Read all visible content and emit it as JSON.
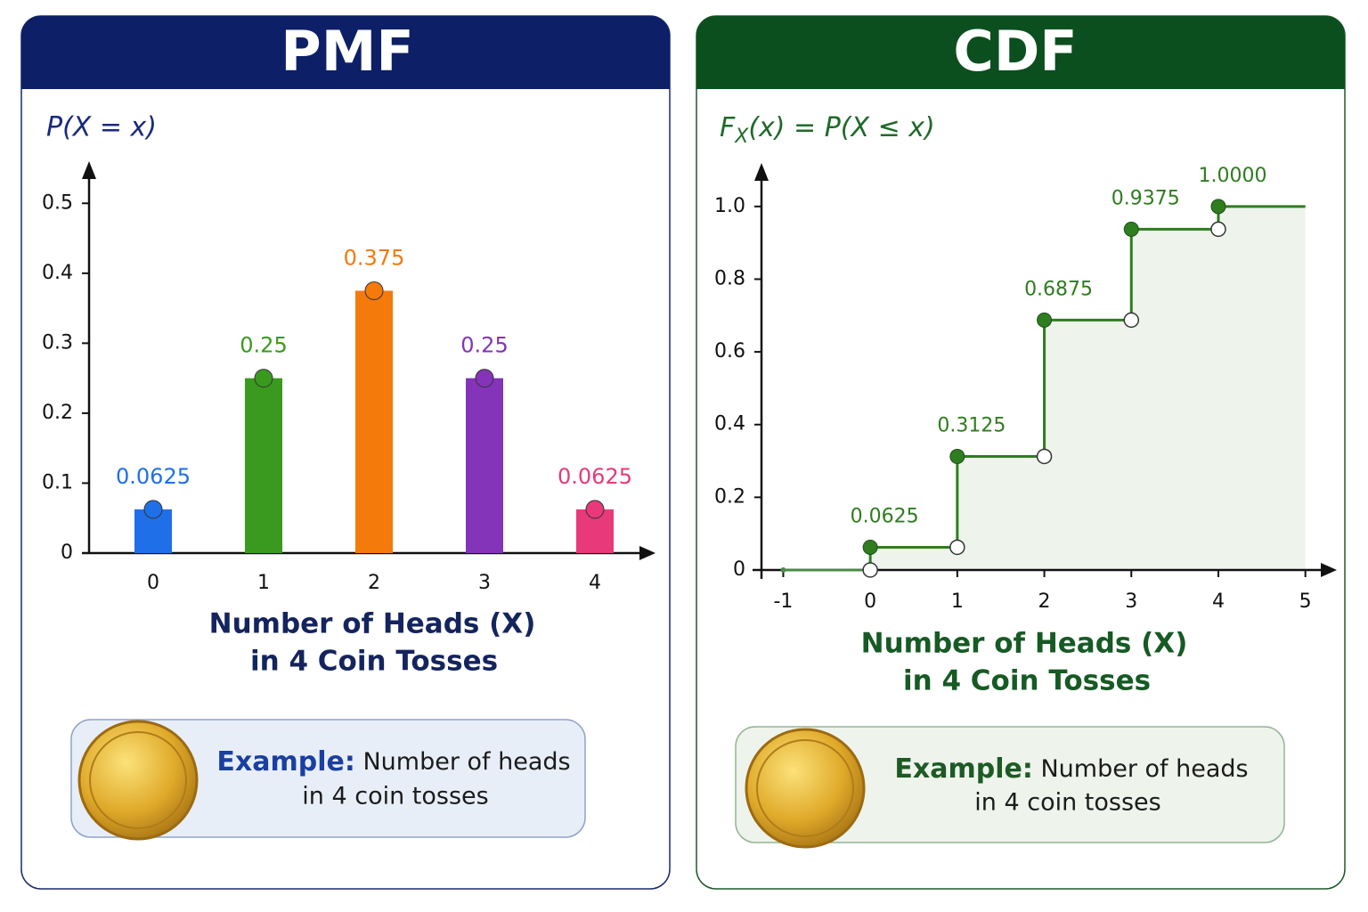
{
  "chart_data": [
    {
      "type": "bar",
      "title": "PMF",
      "y_label": "P(X = x)",
      "x_label": [
        "Number of Heads (X)",
        "in 4 Coin Tosses"
      ],
      "categories": [
        "0",
        "1",
        "2",
        "3",
        "4"
      ],
      "values": [
        0.0625,
        0.25,
        0.375,
        0.25,
        0.0625
      ],
      "colors": [
        "#1f6fe8",
        "#3a9a1f",
        "#f47a0c",
        "#8434b8",
        "#e8397a"
      ],
      "ylim": [
        0,
        0.55
      ],
      "yticks": [
        0,
        0.1,
        0.2,
        0.3,
        0.4,
        0.5
      ],
      "example": {
        "label": "Example:",
        "lines": [
          "Number of heads",
          "in 4 coin tosses"
        ]
      }
    },
    {
      "type": "step",
      "title": "CDF",
      "y_label": [
        "F",
        "X",
        "(x) = P(X ≤ x)"
      ],
      "x_label": [
        "Number of Heads (X)",
        "in 4 Coin Tosses"
      ],
      "x": [
        0,
        1,
        2,
        3,
        4
      ],
      "values": [
        0.0625,
        0.3125,
        0.6875,
        0.9375,
        1
      ],
      "value_labels": [
        "0.0625",
        "0.3125",
        "0.6875",
        "0.9375",
        "1.0000"
      ],
      "color": "#2e7d1f",
      "xlim": [
        -1.25,
        5.3
      ],
      "xticks": [
        -1,
        0,
        1,
        2,
        3,
        4,
        5
      ],
      "ylim": [
        0,
        1.1
      ],
      "yticks": [
        0,
        0.2,
        0.4,
        0.6,
        0.8,
        {
          "value": 1,
          "label": "1.0"
        }
      ],
      "example": {
        "label": "Example:",
        "lines": [
          "Number of heads",
          "in 4 coin tosses"
        ]
      }
    }
  ]
}
